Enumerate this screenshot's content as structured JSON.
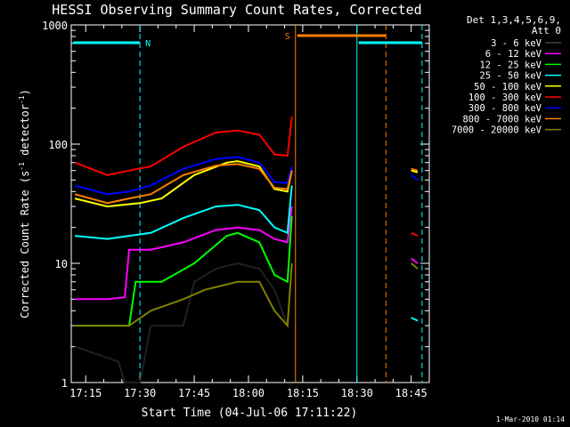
{
  "chart_data": {
    "type": "line",
    "title": "HESSI Observing Summary Count Rates, Corrected",
    "xlabel": "Start Time (04-Jul-06 17:11:22)",
    "ylabel_main": "Corrected Count Rate (s",
    "ylabel_sup1": "-1",
    "ylabel_mid": " detector",
    "ylabel_sup2": "-1",
    "ylabel_end": ")",
    "yscale": "log",
    "ylim": [
      1,
      1000
    ],
    "xlim": [
      "17:11",
      "18:50"
    ],
    "x_ticks": [
      "17:15",
      "17:30",
      "17:45",
      "18:00",
      "18:15",
      "18:30",
      "18:45"
    ],
    "y_ticks": [
      "1",
      "10",
      "100",
      "1000"
    ],
    "legend_header_1": "Det 1,3,4,5,6,9,",
    "legend_header_2": "Att 0",
    "legend_placement": "right",
    "footer": "1-Mar-2010 01:14",
    "flags": [
      {
        "label": "N",
        "start": "17:11",
        "end": "17:30",
        "color": "#00ffff"
      },
      {
        "label": "S",
        "start": "18:13",
        "end": "18:38",
        "color": "#ff8000"
      },
      {
        "label": "",
        "start": "18:30",
        "end": "18:48",
        "color": "#00ffff"
      }
    ],
    "vertical_lines": [
      {
        "time": "17:30",
        "color": "#00ffff",
        "style": "dashed"
      },
      {
        "time": "18:13",
        "color": "#ff8000",
        "style": "solid"
      },
      {
        "time": "18:30",
        "color": "#00ffff",
        "style": "solid"
      },
      {
        "time": "18:38",
        "color": "#ff8000",
        "style": "dashed"
      },
      {
        "time": "18:48",
        "color": "#00ffff",
        "style": "dashed"
      }
    ],
    "series": [
      {
        "name": "3 - 6 keV",
        "color": "#000000",
        "values": [
          [
            17.2,
            2
          ],
          [
            17.4,
            1.5
          ],
          [
            17.43,
            1
          ],
          [
            17.5,
            1
          ],
          [
            17.55,
            3
          ],
          [
            17.7,
            3
          ],
          [
            17.75,
            7
          ],
          [
            17.85,
            9
          ],
          [
            17.95,
            10
          ],
          [
            18.05,
            9
          ],
          [
            18.12,
            6
          ],
          [
            18.18,
            3
          ],
          [
            18.2,
            10
          ]
        ]
      },
      {
        "name": "6 - 12 keV",
        "color": "#ff00ff",
        "values": [
          [
            17.2,
            5
          ],
          [
            17.35,
            5
          ],
          [
            17.43,
            5.2
          ],
          [
            17.45,
            13
          ],
          [
            17.55,
            13
          ],
          [
            17.7,
            15
          ],
          [
            17.85,
            19
          ],
          [
            17.95,
            20
          ],
          [
            18.05,
            19
          ],
          [
            18.12,
            16
          ],
          [
            18.18,
            15
          ],
          [
            18.2,
            30
          ],
          [
            18.75,
            11
          ],
          [
            18.78,
            10
          ]
        ]
      },
      {
        "name": "12 - 25 keV",
        "color": "#00ff00",
        "values": [
          [
            17.2,
            3
          ],
          [
            17.35,
            3
          ],
          [
            17.45,
            3
          ],
          [
            17.48,
            7
          ],
          [
            17.6,
            7
          ],
          [
            17.75,
            10
          ],
          [
            17.9,
            17
          ],
          [
            17.95,
            18
          ],
          [
            18.05,
            15
          ],
          [
            18.12,
            8
          ],
          [
            18.18,
            7
          ],
          [
            18.2,
            25
          ]
        ]
      },
      {
        "name": "25 - 50 keV",
        "color": "#00ffff",
        "values": [
          [
            17.2,
            17
          ],
          [
            17.35,
            16
          ],
          [
            17.45,
            17
          ],
          [
            17.55,
            18
          ],
          [
            17.7,
            24
          ],
          [
            17.85,
            30
          ],
          [
            17.95,
            31
          ],
          [
            18.05,
            28
          ],
          [
            18.12,
            20
          ],
          [
            18.18,
            18
          ],
          [
            18.2,
            45
          ],
          [
            18.75,
            3.5
          ],
          [
            18.78,
            3.3
          ]
        ]
      },
      {
        "name": "50 - 100 keV",
        "color": "#ffff00",
        "values": [
          [
            17.2,
            35
          ],
          [
            17.35,
            30
          ],
          [
            17.5,
            32
          ],
          [
            17.6,
            35
          ],
          [
            17.75,
            55
          ],
          [
            17.9,
            70
          ],
          [
            17.95,
            72
          ],
          [
            18.05,
            65
          ],
          [
            18.12,
            42
          ],
          [
            18.18,
            40
          ],
          [
            18.2,
            60
          ],
          [
            18.75,
            60
          ],
          [
            18.78,
            58
          ]
        ]
      },
      {
        "name": "100 - 300 keV",
        "color": "#ff0000",
        "values": [
          [
            17.2,
            70
          ],
          [
            17.35,
            55
          ],
          [
            17.45,
            60
          ],
          [
            17.55,
            65
          ],
          [
            17.7,
            95
          ],
          [
            17.85,
            125
          ],
          [
            17.95,
            130
          ],
          [
            18.05,
            120
          ],
          [
            18.12,
            82
          ],
          [
            18.18,
            80
          ],
          [
            18.2,
            170
          ],
          [
            18.75,
            18
          ],
          [
            18.78,
            17
          ]
        ]
      },
      {
        "name": "300 - 800 keV",
        "color": "#0000ff",
        "values": [
          [
            17.2,
            45
          ],
          [
            17.35,
            38
          ],
          [
            17.45,
            40
          ],
          [
            17.55,
            45
          ],
          [
            17.7,
            62
          ],
          [
            17.85,
            75
          ],
          [
            17.95,
            78
          ],
          [
            18.05,
            70
          ],
          [
            18.12,
            48
          ],
          [
            18.18,
            47
          ],
          [
            18.2,
            65
          ],
          [
            18.75,
            55
          ],
          [
            18.78,
            50
          ]
        ]
      },
      {
        "name": "800 - 7000 keV",
        "color": "#ff8000",
        "values": [
          [
            17.2,
            38
          ],
          [
            17.35,
            32
          ],
          [
            17.45,
            35
          ],
          [
            17.55,
            38
          ],
          [
            17.7,
            55
          ],
          [
            17.85,
            66
          ],
          [
            17.95,
            68
          ],
          [
            18.05,
            62
          ],
          [
            18.12,
            43
          ],
          [
            18.18,
            42
          ],
          [
            18.2,
            60
          ],
          [
            18.75,
            62
          ],
          [
            18.78,
            60
          ]
        ]
      },
      {
        "name": "7000 - 20000 keV",
        "color": "#808000",
        "values": [
          [
            17.2,
            3
          ],
          [
            17.35,
            3
          ],
          [
            17.45,
            3
          ],
          [
            17.55,
            4
          ],
          [
            17.7,
            5
          ],
          [
            17.8,
            6
          ],
          [
            17.95,
            7
          ],
          [
            18.05,
            7
          ],
          [
            18.12,
            4
          ],
          [
            18.18,
            3
          ],
          [
            18.2,
            10
          ],
          [
            18.75,
            10
          ],
          [
            18.78,
            9
          ]
        ]
      }
    ]
  }
}
